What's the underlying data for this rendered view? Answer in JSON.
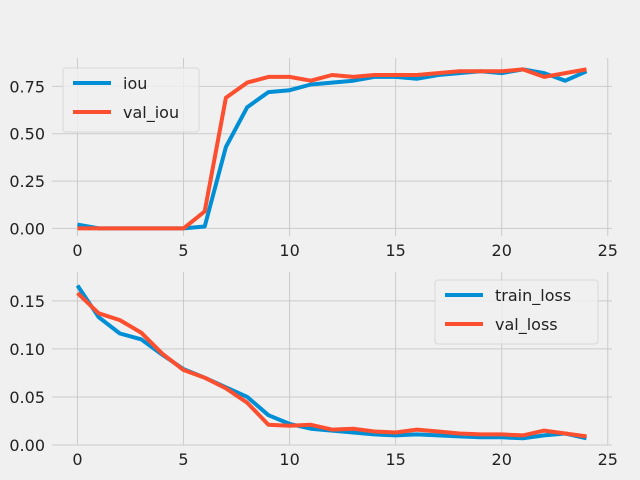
{
  "chart_data": [
    {
      "type": "line",
      "title": "",
      "xlabel": "",
      "ylabel": "",
      "xlim": [
        -1.2,
        25.2
      ],
      "ylim": [
        -0.04,
        0.9
      ],
      "xticks": [
        0,
        5,
        10,
        15,
        20,
        25
      ],
      "xtick_labels": [
        "0",
        "5",
        "10",
        "15",
        "20",
        "25"
      ],
      "yticks": [
        0.0,
        0.25,
        0.5,
        0.75
      ],
      "ytick_labels": [
        "0.00",
        "0.25",
        "0.50",
        "0.75"
      ],
      "grid": true,
      "legend_position": "top-left",
      "x": [
        0,
        1,
        2,
        3,
        4,
        5,
        6,
        7,
        8,
        9,
        10,
        11,
        12,
        13,
        14,
        15,
        16,
        17,
        18,
        19,
        20,
        21,
        22,
        23,
        24
      ],
      "series": [
        {
          "name": "iou",
          "color": "#008fd5",
          "values": [
            0.02,
            0.0,
            0.0,
            0.0,
            0.0,
            0.0,
            0.01,
            0.43,
            0.64,
            0.72,
            0.73,
            0.76,
            0.77,
            0.78,
            0.8,
            0.8,
            0.79,
            0.81,
            0.82,
            0.83,
            0.82,
            0.84,
            0.82,
            0.78,
            0.83
          ]
        },
        {
          "name": "val_iou",
          "color": "#fc4f30",
          "values": [
            0.0,
            0.0,
            0.0,
            0.0,
            0.0,
            0.0,
            0.09,
            0.69,
            0.77,
            0.8,
            0.8,
            0.78,
            0.81,
            0.8,
            0.81,
            0.81,
            0.81,
            0.82,
            0.83,
            0.83,
            0.83,
            0.84,
            0.8,
            0.82,
            0.84
          ]
        }
      ]
    },
    {
      "type": "line",
      "title": "",
      "xlabel": "",
      "ylabel": "",
      "xlim": [
        -1.2,
        25.2
      ],
      "ylim": [
        0.0,
        0.18
      ],
      "xticks": [
        0,
        5,
        10,
        15,
        20,
        25
      ],
      "xtick_labels": [
        "0",
        "5",
        "10",
        "15",
        "20",
        "25"
      ],
      "yticks": [
        0.0,
        0.05,
        0.1,
        0.15
      ],
      "ytick_labels": [
        "0.00",
        "0.05",
        "0.10",
        "0.15"
      ],
      "grid": true,
      "legend_position": "top-right",
      "x": [
        0,
        1,
        2,
        3,
        4,
        5,
        6,
        7,
        8,
        9,
        10,
        11,
        12,
        13,
        14,
        15,
        16,
        17,
        18,
        19,
        20,
        21,
        22,
        23,
        24
      ],
      "series": [
        {
          "name": "train_loss",
          "color": "#008fd5",
          "values": [
            0.166,
            0.133,
            0.116,
            0.11,
            0.094,
            0.079,
            0.07,
            0.06,
            0.05,
            0.031,
            0.022,
            0.017,
            0.015,
            0.013,
            0.011,
            0.01,
            0.011,
            0.01,
            0.009,
            0.008,
            0.008,
            0.007,
            0.01,
            0.012,
            0.007
          ]
        },
        {
          "name": "val_loss",
          "color": "#fc4f30",
          "values": [
            0.158,
            0.137,
            0.13,
            0.117,
            0.095,
            0.078,
            0.07,
            0.059,
            0.044,
            0.021,
            0.02,
            0.021,
            0.016,
            0.017,
            0.014,
            0.013,
            0.016,
            0.014,
            0.012,
            0.011,
            0.011,
            0.01,
            0.015,
            0.012,
            0.009
          ]
        }
      ]
    }
  ]
}
